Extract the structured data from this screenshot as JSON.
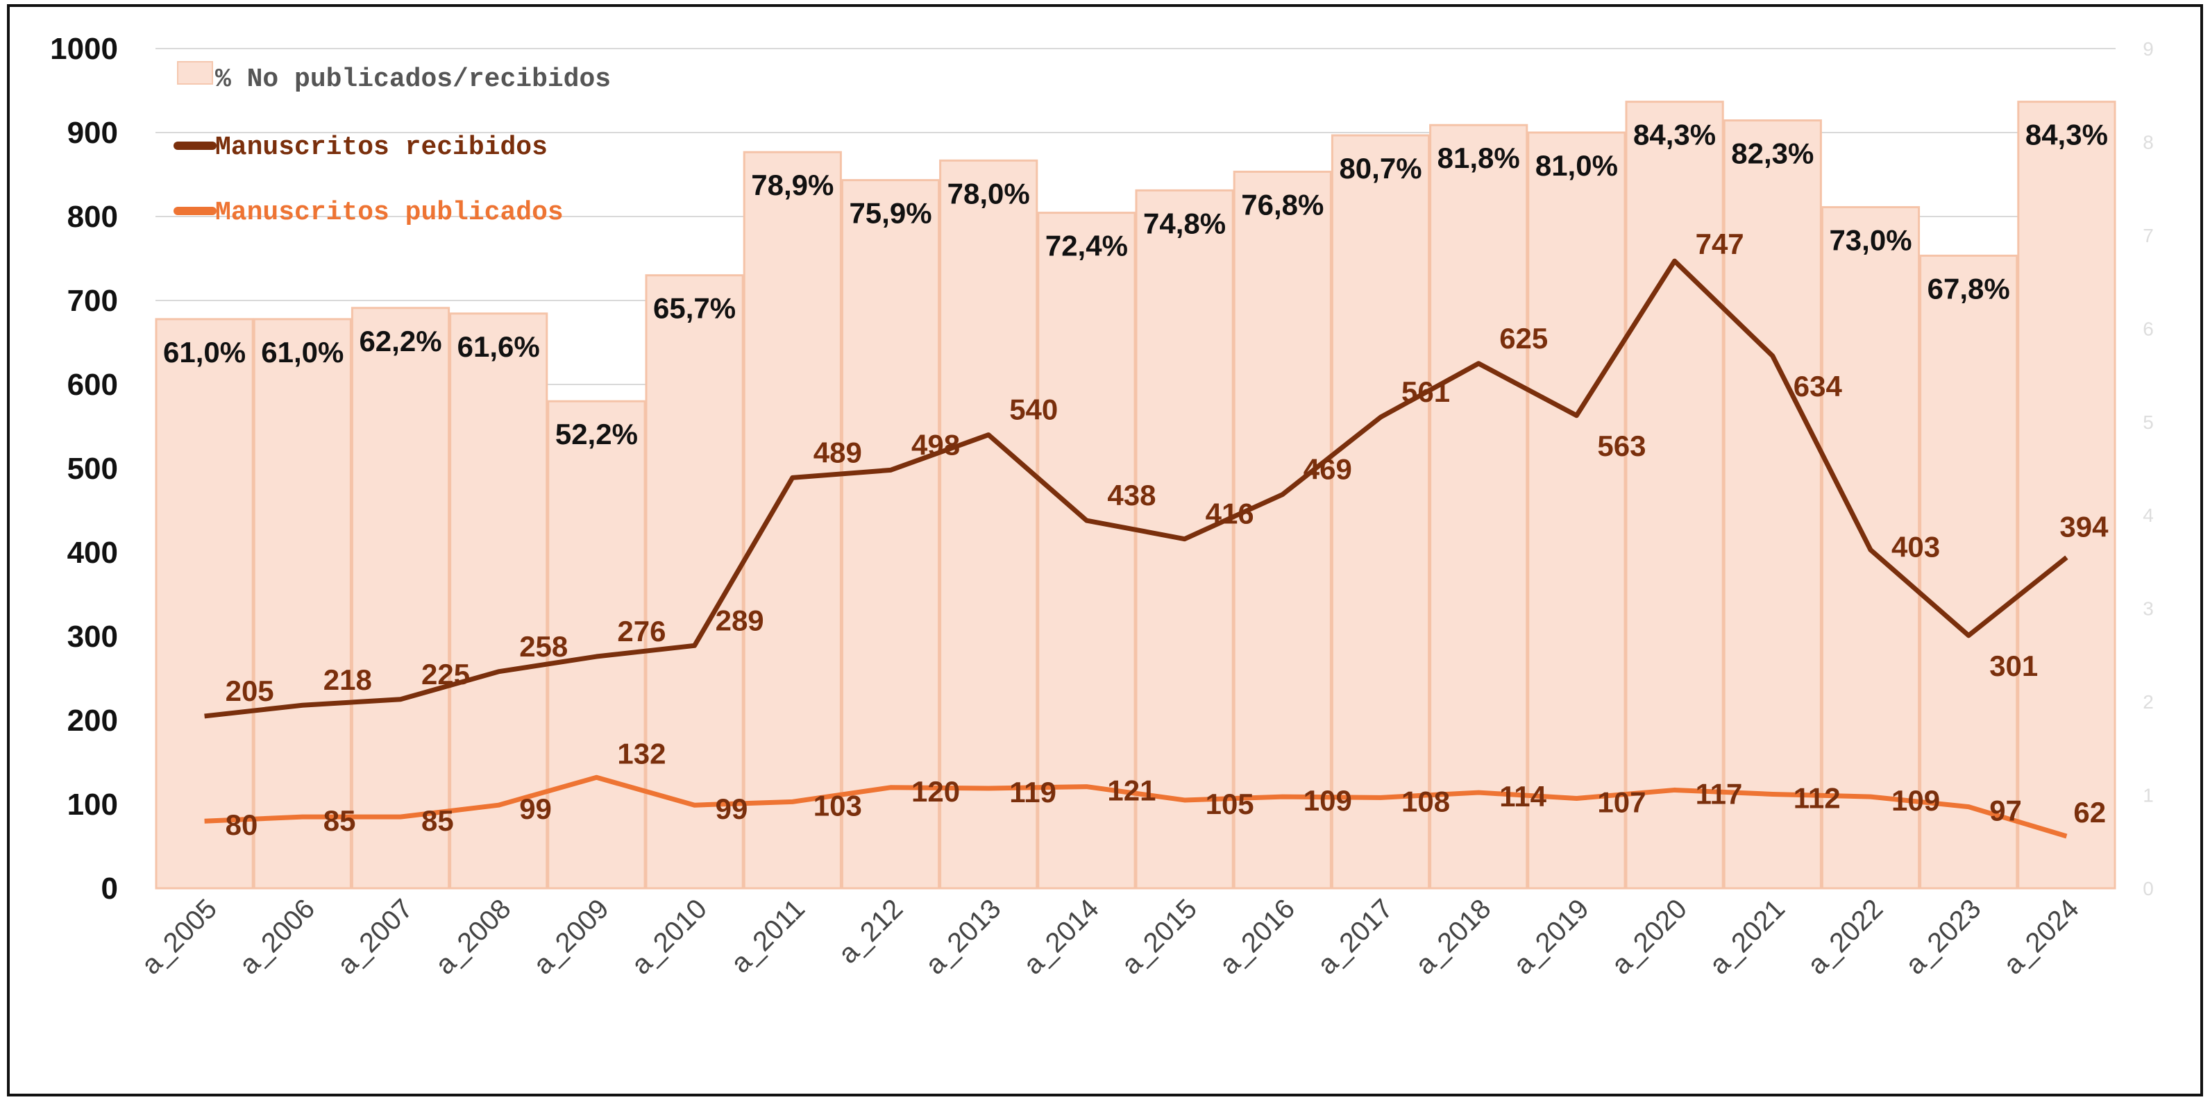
{
  "chart_data": {
    "type": "bar+line",
    "categories": [
      "a_2005",
      "a_2006",
      "a_2007",
      "a_2008",
      "a_2009",
      "a_2010",
      "a_2011",
      "a_212",
      "a_2013",
      "a_2014",
      "a_2015",
      "a_2016",
      "a_2017",
      "a_2018",
      "a_2019",
      "a_2020",
      "a_2021",
      "a_2022",
      "a_2023",
      "a_2024"
    ],
    "bars": {
      "name": "% No publicados/recibidos",
      "values": [
        61.0,
        61.0,
        62.2,
        61.6,
        52.2,
        65.7,
        78.9,
        75.9,
        78.0,
        72.4,
        74.8,
        76.8,
        80.7,
        81.8,
        81.0,
        84.3,
        82.3,
        73.0,
        67.8,
        84.3
      ],
      "labels": [
        "61,0%",
        "61,0%",
        "62,2%",
        "61,6%",
        "52,2%",
        "65,7%",
        "78,9%",
        "75,9%",
        "78,0%",
        "72,4%",
        "74,8%",
        "76,8%",
        "80,7%",
        "81,8%",
        "81,0%",
        "84,3%",
        "82,3%",
        "73,0%",
        "67,8%",
        "84,3%"
      ],
      "axis": "right",
      "color": "#fbe0d3"
    },
    "series": [
      {
        "name": "Manuscritos recibidos",
        "values": [
          205,
          218,
          225,
          258,
          276,
          289,
          489,
          498,
          540,
          438,
          416,
          469,
          561,
          625,
          563,
          747,
          634,
          403,
          301,
          394
        ],
        "color": "#7a2f0c"
      },
      {
        "name": "Manuscritos publicados",
        "values": [
          80,
          85,
          85,
          99,
          132,
          99,
          103,
          120,
          119,
          121,
          105,
          109,
          108,
          114,
          107,
          117,
          112,
          109,
          97,
          62
        ],
        "color": "#ee7433"
      }
    ],
    "y_left": {
      "range": [
        0,
        1000
      ],
      "ticks": [
        "0",
        "100",
        "200",
        "300",
        "400",
        "500",
        "600",
        "700",
        "800",
        "900",
        "1000"
      ]
    },
    "y_right": {
      "range": [
        0,
        9
      ],
      "ticks": [
        "0",
        "1",
        "2",
        "3",
        "4",
        "5",
        "6",
        "7",
        "8",
        "9"
      ]
    },
    "grid": true,
    "legend": "top-left"
  }
}
